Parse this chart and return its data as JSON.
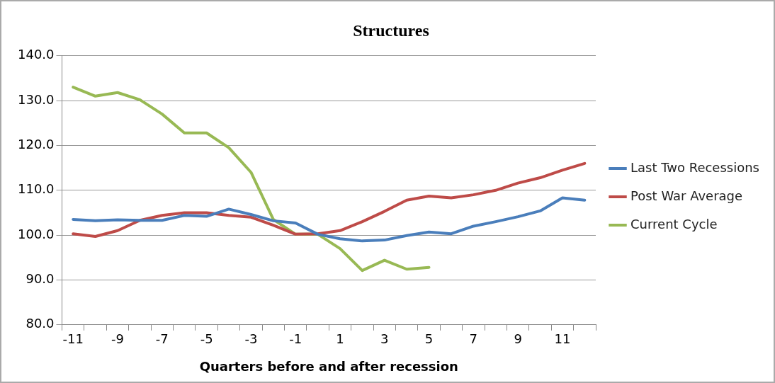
{
  "chart_data": {
    "type": "line",
    "title": "Structures",
    "xlabel": "Quarters before and after recession",
    "categories": [
      "-11",
      null,
      "-9",
      null,
      "-7",
      null,
      "-5",
      null,
      "-3",
      null,
      "-1",
      null,
      "1",
      null,
      "3",
      null,
      "5",
      null,
      "7",
      null,
      "9",
      null,
      "11",
      null
    ],
    "series": [
      {
        "name": "Last Two Recessions",
        "color": "#4a7ebb",
        "values": [
          103.5,
          103.2,
          103.4,
          103.3,
          103.3,
          104.4,
          104.2,
          105.8,
          104.6,
          103.2,
          102.7,
          100.2,
          99.2,
          98.7,
          98.9,
          99.9,
          100.7,
          100.3,
          102,
          103,
          104.1,
          105.4,
          108.3,
          107.8
        ]
      },
      {
        "name": "Post War Average",
        "color": "#be4b48",
        "values": [
          100.3,
          99.7,
          101,
          103.3,
          104.4,
          105,
          105,
          104.4,
          104,
          102.2,
          100.2,
          100.3,
          101,
          103,
          105.3,
          107.8,
          108.7,
          108.3,
          109,
          110,
          111.6,
          112.8,
          114.5,
          116
        ]
      },
      {
        "name": "Current Cycle",
        "color": "#98b954",
        "values": [
          133,
          131,
          131.8,
          130.2,
          127,
          122.8,
          122.8,
          119.5,
          114,
          103.5,
          100.2,
          100.2,
          97,
          92.1,
          94.4,
          92.4,
          92.8,
          null,
          null,
          null,
          null,
          null,
          null,
          null
        ]
      }
    ],
    "ylim": [
      80,
      140
    ],
    "yticks": [
      {
        "value": 80,
        "label": "80.0"
      },
      {
        "value": 90,
        "label": "90.0"
      },
      {
        "value": 100,
        "label": "100.0"
      },
      {
        "value": 110,
        "label": "110.0"
      },
      {
        "value": 120,
        "label": "120.0"
      },
      {
        "value": 130,
        "label": "130.0"
      },
      {
        "value": 140,
        "label": "140.0"
      }
    ],
    "grid": "y",
    "legend": "right",
    "marker": "none",
    "line_style": "solid"
  }
}
